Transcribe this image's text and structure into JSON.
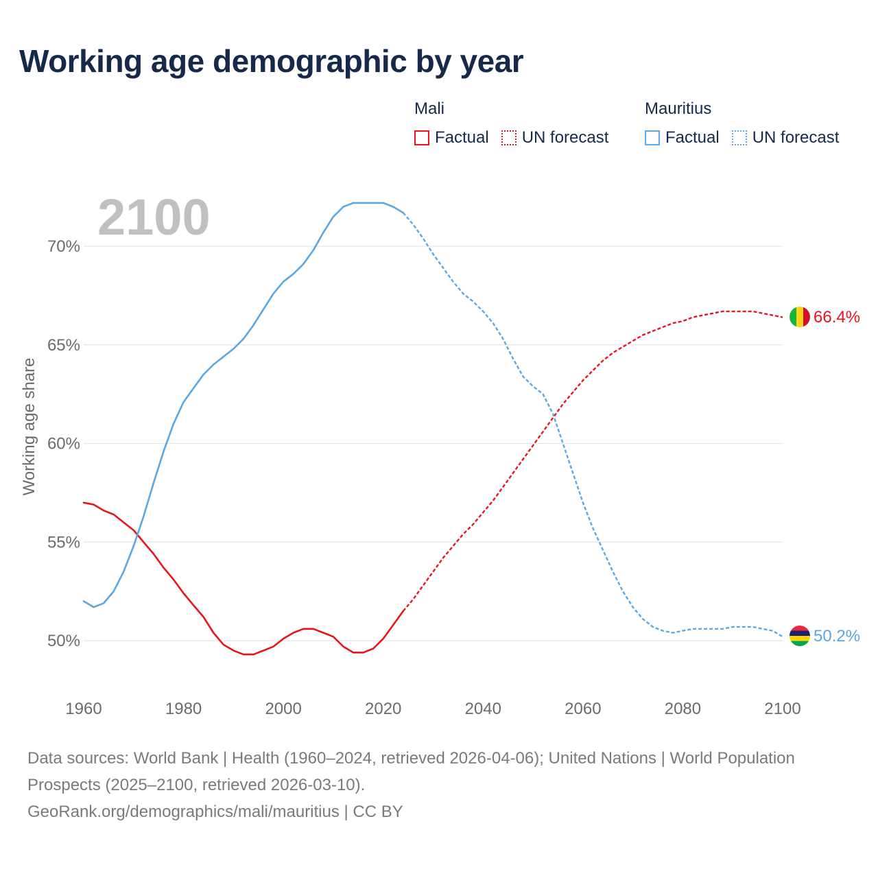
{
  "title": "Working age demographic by year",
  "legend": {
    "groups": [
      {
        "name": "Mali",
        "color": "#e8141c",
        "factual_label": "Factual",
        "forecast_label": "UN forecast"
      },
      {
        "name": "Mauritius",
        "color": "#5aa7e3",
        "factual_label": "Factual",
        "forecast_label": "UN forecast"
      }
    ]
  },
  "year_badge": "2100",
  "end_labels": {
    "mali": "66.4%",
    "mauritius": "50.2%"
  },
  "footer": {
    "sources": "Data sources: World Bank | Health (1960–2024, retrieved 2026-04-06); United Nations | World Population Prospects (2025–2100, retrieved 2026-03-10).",
    "credit": "GeoRank.org/demographics/mali/mauritius | CC BY"
  },
  "chart_data": {
    "type": "line",
    "title": "Working age demographic by year",
    "xlabel": "",
    "ylabel": "Working age share",
    "xlim": [
      1960,
      2100
    ],
    "ylim": [
      47.5,
      72.5
    ],
    "x_ticks": [
      1960,
      1980,
      2000,
      2020,
      2040,
      2060,
      2080,
      2100
    ],
    "y_ticks": [
      50,
      55,
      60,
      65,
      70
    ],
    "y_tick_labels": [
      "50%",
      "55%",
      "60%",
      "65%",
      "70%"
    ],
    "factual_end_year": 2024,
    "series": [
      {
        "name": "Mali",
        "color": "#e8141c",
        "points": [
          [
            1960,
            57.0
          ],
          [
            1962,
            56.9
          ],
          [
            1964,
            56.6
          ],
          [
            1966,
            56.4
          ],
          [
            1968,
            56.0
          ],
          [
            1970,
            55.6
          ],
          [
            1972,
            55.0
          ],
          [
            1974,
            54.4
          ],
          [
            1976,
            53.7
          ],
          [
            1978,
            53.1
          ],
          [
            1980,
            52.4
          ],
          [
            1982,
            51.8
          ],
          [
            1984,
            51.2
          ],
          [
            1986,
            50.4
          ],
          [
            1988,
            49.8
          ],
          [
            1990,
            49.5
          ],
          [
            1992,
            49.3
          ],
          [
            1994,
            49.3
          ],
          [
            1996,
            49.5
          ],
          [
            1998,
            49.7
          ],
          [
            2000,
            50.1
          ],
          [
            2002,
            50.4
          ],
          [
            2004,
            50.6
          ],
          [
            2006,
            50.6
          ],
          [
            2008,
            50.4
          ],
          [
            2010,
            50.2
          ],
          [
            2012,
            49.7
          ],
          [
            2014,
            49.4
          ],
          [
            2016,
            49.4
          ],
          [
            2018,
            49.6
          ],
          [
            2020,
            50.1
          ],
          [
            2022,
            50.8
          ],
          [
            2024,
            51.5
          ],
          [
            2026,
            52.1
          ],
          [
            2028,
            52.8
          ],
          [
            2030,
            53.5
          ],
          [
            2032,
            54.2
          ],
          [
            2034,
            54.8
          ],
          [
            2036,
            55.4
          ],
          [
            2038,
            55.9
          ],
          [
            2040,
            56.5
          ],
          [
            2042,
            57.1
          ],
          [
            2044,
            57.8
          ],
          [
            2046,
            58.5
          ],
          [
            2048,
            59.2
          ],
          [
            2050,
            59.9
          ],
          [
            2052,
            60.6
          ],
          [
            2054,
            61.3
          ],
          [
            2056,
            62.0
          ],
          [
            2058,
            62.6
          ],
          [
            2060,
            63.2
          ],
          [
            2062,
            63.7
          ],
          [
            2064,
            64.2
          ],
          [
            2066,
            64.6
          ],
          [
            2068,
            64.9
          ],
          [
            2070,
            65.2
          ],
          [
            2072,
            65.5
          ],
          [
            2074,
            65.7
          ],
          [
            2076,
            65.9
          ],
          [
            2078,
            66.1
          ],
          [
            2080,
            66.2
          ],
          [
            2082,
            66.4
          ],
          [
            2084,
            66.5
          ],
          [
            2086,
            66.6
          ],
          [
            2088,
            66.7
          ],
          [
            2090,
            66.7
          ],
          [
            2092,
            66.7
          ],
          [
            2094,
            66.7
          ],
          [
            2096,
            66.6
          ],
          [
            2098,
            66.5
          ],
          [
            2100,
            66.4
          ]
        ]
      },
      {
        "name": "Mauritius",
        "color": "#5aa7e3",
        "points": [
          [
            1960,
            52.0
          ],
          [
            1962,
            51.7
          ],
          [
            1964,
            51.9
          ],
          [
            1966,
            52.5
          ],
          [
            1968,
            53.5
          ],
          [
            1970,
            54.8
          ],
          [
            1972,
            56.3
          ],
          [
            1974,
            58.0
          ],
          [
            1976,
            59.6
          ],
          [
            1978,
            61.0
          ],
          [
            1980,
            62.1
          ],
          [
            1982,
            62.8
          ],
          [
            1984,
            63.5
          ],
          [
            1986,
            64.0
          ],
          [
            1988,
            64.4
          ],
          [
            1990,
            64.8
          ],
          [
            1992,
            65.3
          ],
          [
            1994,
            66.0
          ],
          [
            1996,
            66.8
          ],
          [
            1998,
            67.6
          ],
          [
            2000,
            68.2
          ],
          [
            2002,
            68.6
          ],
          [
            2004,
            69.1
          ],
          [
            2006,
            69.8
          ],
          [
            2008,
            70.7
          ],
          [
            2010,
            71.5
          ],
          [
            2012,
            72.0
          ],
          [
            2014,
            72.2
          ],
          [
            2016,
            72.2
          ],
          [
            2018,
            72.2
          ],
          [
            2020,
            72.2
          ],
          [
            2022,
            72.0
          ],
          [
            2024,
            71.7
          ],
          [
            2026,
            71.1
          ],
          [
            2028,
            70.4
          ],
          [
            2030,
            69.6
          ],
          [
            2032,
            68.9
          ],
          [
            2034,
            68.2
          ],
          [
            2036,
            67.6
          ],
          [
            2038,
            67.2
          ],
          [
            2040,
            66.7
          ],
          [
            2042,
            66.1
          ],
          [
            2044,
            65.3
          ],
          [
            2046,
            64.3
          ],
          [
            2048,
            63.4
          ],
          [
            2050,
            62.9
          ],
          [
            2052,
            62.5
          ],
          [
            2054,
            61.5
          ],
          [
            2056,
            60.0
          ],
          [
            2058,
            58.5
          ],
          [
            2060,
            57.0
          ],
          [
            2062,
            55.7
          ],
          [
            2064,
            54.6
          ],
          [
            2066,
            53.5
          ],
          [
            2068,
            52.5
          ],
          [
            2070,
            51.7
          ],
          [
            2072,
            51.1
          ],
          [
            2074,
            50.7
          ],
          [
            2076,
            50.5
          ],
          [
            2078,
            50.4
          ],
          [
            2080,
            50.5
          ],
          [
            2082,
            50.6
          ],
          [
            2084,
            50.6
          ],
          [
            2086,
            50.6
          ],
          [
            2088,
            50.6
          ],
          [
            2090,
            50.7
          ],
          [
            2092,
            50.7
          ],
          [
            2094,
            50.7
          ],
          [
            2096,
            50.6
          ],
          [
            2098,
            50.5
          ],
          [
            2100,
            50.2
          ]
        ]
      }
    ]
  }
}
